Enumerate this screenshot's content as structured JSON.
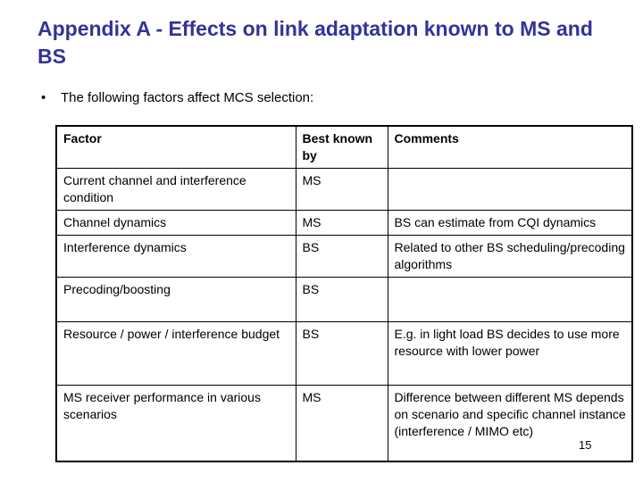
{
  "slide": {
    "title": "Appendix A - Effects on link adaptation known to MS and BS",
    "bullet_marker": "•",
    "bullet_text": "The following factors affect MCS selection:",
    "page_number": "15"
  },
  "colors": {
    "title": "#333399",
    "body_text": "#000000",
    "table_border": "#000000",
    "background": "#ffffff"
  },
  "table": {
    "headers": [
      "Factor",
      "Best known by",
      "Comments"
    ],
    "rows": [
      {
        "factor": "Current channel and interference condition",
        "best_known_by": "MS",
        "comments": ""
      },
      {
        "factor": "Channel dynamics",
        "best_known_by": "MS",
        "comments": "BS can estimate from CQI dynamics"
      },
      {
        "factor": "Interference dynamics",
        "best_known_by": "BS",
        "comments": "Related to other BS scheduling/precoding algorithms"
      },
      {
        "factor": "Precoding/boosting",
        "best_known_by": "BS",
        "comments": ""
      },
      {
        "factor": "Resource / power / interference budget",
        "best_known_by": "BS",
        "comments": "E.g. in light load BS decides to use more resource with lower power"
      },
      {
        "factor": "MS receiver performance in various scenarios",
        "best_known_by": "MS",
        "comments": "Difference between different MS depends on scenario  and specific channel instance (interference / MIMO etc)"
      }
    ]
  }
}
